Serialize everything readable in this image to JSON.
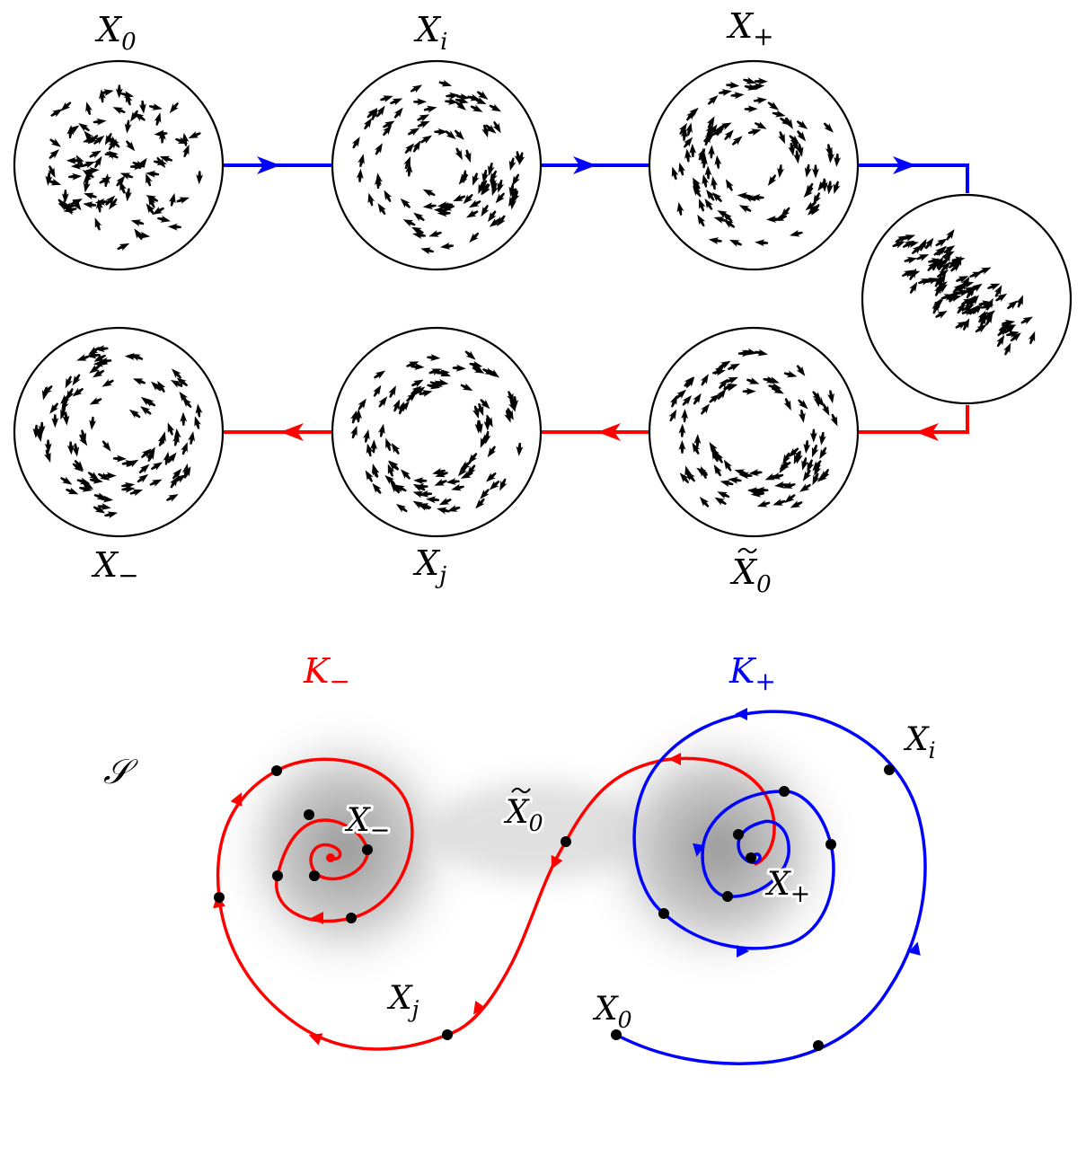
{
  "colors": {
    "forward": "#0000ff",
    "backward": "#ff0000",
    "particle": "#000000",
    "circle_stroke": "#000000",
    "basin": "#9a9a9a"
  },
  "top_panel": {
    "snapshots": [
      {
        "id": "x0",
        "base": "X",
        "sub": "0",
        "tilde": false,
        "state": "disordered"
      },
      {
        "id": "xi",
        "base": "X",
        "sub": "i",
        "tilde": false,
        "state": "milling"
      },
      {
        "id": "xplus",
        "base": "X",
        "sub": "+",
        "tilde": false,
        "state": "milling"
      },
      {
        "id": "xswitch",
        "base": "",
        "sub": "",
        "tilde": false,
        "state": "clustered"
      },
      {
        "id": "xtilde0",
        "base": "X",
        "sub": "0",
        "tilde": true,
        "state": "disordered"
      },
      {
        "id": "xj",
        "base": "X",
        "sub": "j",
        "tilde": false,
        "state": "milling"
      },
      {
        "id": "xminus",
        "base": "X",
        "sub": "−",
        "tilde": false,
        "state": "milling"
      }
    ],
    "forward_arrow_icons": [
      "arrow-right-icon",
      "arrow-right-icon",
      "arrow-right-icon"
    ],
    "backward_arrow_icons": [
      "arrow-left-icon",
      "arrow-left-icon",
      "arrow-left-icon"
    ]
  },
  "bottom_panel": {
    "space_label": "𝒮",
    "attractor_minus": {
      "base": "K",
      "sub": "−"
    },
    "attractor_plus": {
      "base": "K",
      "sub": "+"
    },
    "points": {
      "x0": {
        "base": "X",
        "sub": "0",
        "tilde": false
      },
      "xi": {
        "base": "X",
        "sub": "i",
        "tilde": false
      },
      "xplus": {
        "base": "X",
        "sub": "+",
        "tilde": false
      },
      "xtilde0": {
        "base": "X",
        "sub": "0",
        "tilde": true
      },
      "xj": {
        "base": "X",
        "sub": "j",
        "tilde": false
      },
      "xminus": {
        "base": "X",
        "sub": "−",
        "tilde": false
      }
    }
  }
}
